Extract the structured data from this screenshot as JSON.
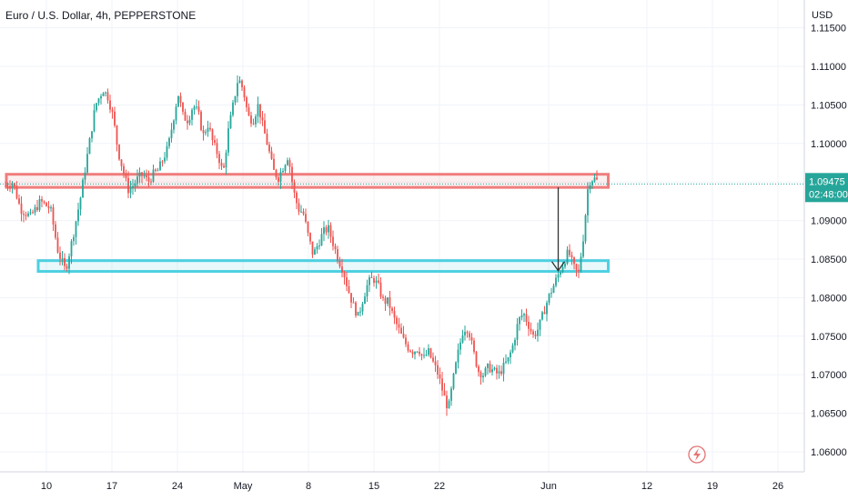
{
  "header": {
    "title": "Euro / U.S. Dollar, 4h, PEPPERSTONE"
  },
  "price_axis": {
    "currency": "USD"
  },
  "last_price": {
    "value": "1.09475",
    "countdown": "02:48:00",
    "color": "#26a69a"
  },
  "colors": {
    "up": "#26a69a",
    "down": "#ef5350",
    "resistance_zone": "#f07d7d",
    "support_zone": "#4dd0e1",
    "arrow": "#333333",
    "grid": "#f0f3fa"
  },
  "alert_icon": "lightning-icon",
  "chart_data": {
    "type": "candlestick",
    "title": "Euro / U.S. Dollar, 4h, PEPPERSTONE",
    "ylabel": "USD",
    "ylim": [
      1.058,
      1.116
    ],
    "y_ticks": [
      "1.11500",
      "1.11000",
      "1.10500",
      "1.10000",
      "1.09500",
      "1.09000",
      "1.08500",
      "1.08000",
      "1.07500",
      "1.07000",
      "1.06500",
      "1.06000"
    ],
    "x_ticks": [
      "10",
      "17",
      "24",
      "May",
      "8",
      "15",
      "22",
      "Jun",
      "12",
      "19",
      "26"
    ],
    "price_path": [
      [
        0,
        1.0945
      ],
      [
        3,
        1.095
      ],
      [
        6,
        1.0915
      ],
      [
        10,
        1.0905
      ],
      [
        14,
        1.0925
      ],
      [
        18,
        1.0915
      ],
      [
        21,
        1.086
      ],
      [
        24,
        1.0835
      ],
      [
        27,
        1.088
      ],
      [
        30,
        1.093
      ],
      [
        33,
        1.099
      ],
      [
        36,
        1.105
      ],
      [
        39,
        1.107
      ],
      [
        41,
        1.106
      ],
      [
        43,
        1.1035
      ],
      [
        45,
        1.099
      ],
      [
        47,
        1.0965
      ],
      [
        49,
        1.094
      ],
      [
        51,
        1.0945
      ],
      [
        53,
        1.0955
      ],
      [
        55,
        1.096
      ],
      [
        57,
        1.095
      ],
      [
        59,
        1.096
      ],
      [
        61,
        1.0965
      ],
      [
        63,
        1.098
      ],
      [
        65,
        1.0995
      ],
      [
        67,
        1.103
      ],
      [
        69,
        1.1065
      ],
      [
        71,
        1.1035
      ],
      [
        73,
        1.103
      ],
      [
        75,
        1.105
      ],
      [
        77,
        1.104
      ],
      [
        79,
        1.101
      ],
      [
        81,
        1.1025
      ],
      [
        83,
        1.1
      ],
      [
        85,
        1.0985
      ],
      [
        87,
        1.096
      ],
      [
        89,
        1.1015
      ],
      [
        91,
        1.105
      ],
      [
        93,
        1.1085
      ],
      [
        95,
        1.107
      ],
      [
        97,
        1.1035
      ],
      [
        99,
        1.103
      ],
      [
        101,
        1.105
      ],
      [
        103,
        1.102
      ],
      [
        105,
        1.0995
      ],
      [
        107,
        1.0965
      ],
      [
        109,
        1.0955
      ],
      [
        111,
        1.097
      ],
      [
        113,
        1.0985
      ],
      [
        115,
        1.094
      ],
      [
        117,
        1.0915
      ],
      [
        119,
        1.091
      ],
      [
        121,
        1.088
      ],
      [
        123,
        1.0855
      ],
      [
        125,
        1.087
      ],
      [
        127,
        1.0885
      ],
      [
        129,
        1.089
      ],
      [
        131,
        1.087
      ],
      [
        133,
        1.085
      ],
      [
        135,
        1.0835
      ],
      [
        137,
        1.081
      ],
      [
        139,
        1.079
      ],
      [
        141,
        1.0775
      ],
      [
        143,
        1.08
      ],
      [
        145,
        1.082
      ],
      [
        147,
        1.0825
      ],
      [
        149,
        1.0815
      ],
      [
        151,
        1.0795
      ],
      [
        153,
        1.0795
      ],
      [
        155,
        1.0775
      ],
      [
        157,
        1.076
      ],
      [
        159,
        1.0745
      ],
      [
        161,
        1.0735
      ],
      [
        163,
        1.073
      ],
      [
        165,
        1.0735
      ],
      [
        167,
        1.072
      ],
      [
        169,
        1.073
      ],
      [
        171,
        1.0715
      ],
      [
        173,
        1.07
      ],
      [
        175,
        1.0675
      ],
      [
        177,
        1.0655
      ],
      [
        179,
        1.0695
      ],
      [
        181,
        1.073
      ],
      [
        183,
        1.076
      ],
      [
        185,
        1.076
      ],
      [
        187,
        1.073
      ],
      [
        189,
        1.0705
      ],
      [
        191,
        1.07
      ],
      [
        193,
        1.071
      ],
      [
        195,
        1.0705
      ],
      [
        197,
        1.07
      ],
      [
        199,
        1.071
      ],
      [
        201,
        1.072
      ],
      [
        203,
        1.074
      ],
      [
        205,
        1.077
      ],
      [
        207,
        1.078
      ],
      [
        209,
        1.0765
      ],
      [
        211,
        1.075
      ],
      [
        213,
        1.076
      ],
      [
        215,
        1.078
      ],
      [
        217,
        1.08
      ],
      [
        219,
        1.0815
      ],
      [
        221,
        1.083
      ],
      [
        223,
        1.0845
      ],
      [
        225,
        1.086
      ],
      [
        227,
        1.084
      ],
      [
        229,
        1.083
      ],
      [
        231,
        1.088
      ],
      [
        233,
        1.095
      ],
      [
        235,
        1.0955
      ],
      [
        237,
        1.095
      ]
    ],
    "annotations": {
      "resistance_zone": {
        "from_bar": 0,
        "to_bar": 265,
        "low": 1.0943,
        "high": 1.096
      },
      "support_zone": {
        "from_bar": 14,
        "to_bar": 265,
        "low": 1.0834,
        "high": 1.0848
      },
      "arrow": {
        "bar": 243,
        "from": 1.0943,
        "to": 1.0835
      }
    }
  }
}
